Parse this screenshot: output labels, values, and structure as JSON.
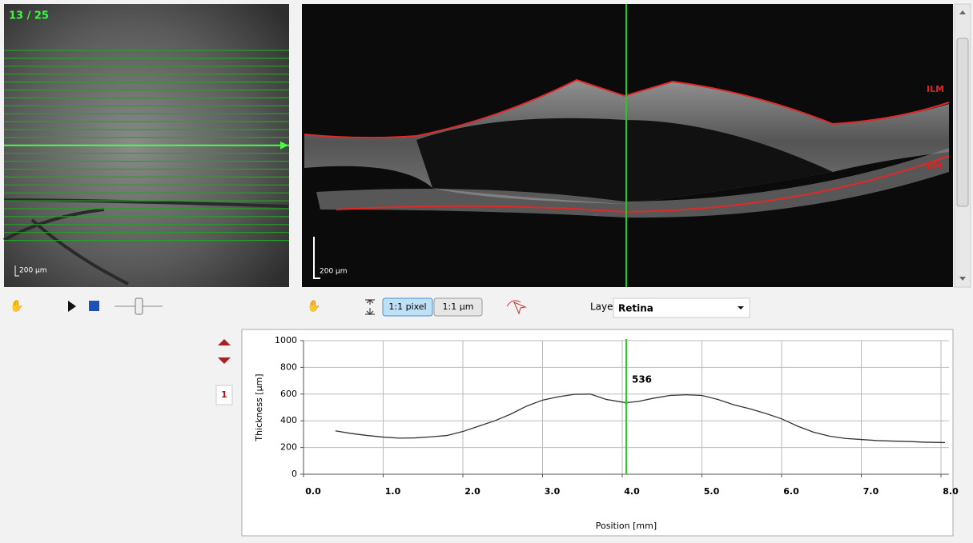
{
  "fundus": {
    "scan_counter": "13 / 25",
    "scale_label": "200 µm"
  },
  "bscan": {
    "scale_label": "200 µm",
    "layer_labels": [
      "ILM",
      "BM"
    ]
  },
  "toolbar": {
    "zoom_buttons": [
      "1:1 pixel",
      "1:1 µm"
    ],
    "layer_label": "Layer:",
    "layer_value": "Retina"
  },
  "side_panel": {
    "page": "1"
  },
  "chart_data": {
    "type": "line",
    "x_label": "Position [mm]",
    "y_label": "Thickness [µm]",
    "color": "#333333",
    "x": [
      0.4,
      0.6,
      0.8,
      1.0,
      1.2,
      1.4,
      1.6,
      1.8,
      2.0,
      2.2,
      2.4,
      2.6,
      2.8,
      3.0,
      3.2,
      3.4,
      3.6,
      3.8,
      4.0,
      4.05,
      4.2,
      4.4,
      4.6,
      4.8,
      5.0,
      5.2,
      5.4,
      5.6,
      5.8,
      6.0,
      6.2,
      6.4,
      6.6,
      6.8,
      7.0,
      7.2,
      7.4,
      7.6,
      7.8,
      8.05
    ],
    "values": [
      325,
      305,
      290,
      278,
      270,
      272,
      280,
      290,
      320,
      360,
      400,
      450,
      510,
      555,
      580,
      598,
      600,
      560,
      540,
      536,
      545,
      570,
      590,
      595,
      590,
      560,
      520,
      490,
      455,
      415,
      360,
      315,
      285,
      268,
      260,
      252,
      248,
      245,
      240,
      237
    ],
    "xlim": [
      0,
      8.1
    ],
    "ylim": [
      0,
      1000
    ],
    "xticks": [
      {
        "value": 0,
        "label": "0.0"
      },
      {
        "value": 1,
        "label": "1.0"
      },
      {
        "value": 2,
        "label": "2.0"
      },
      {
        "value": 3,
        "label": "3.0"
      },
      {
        "value": 4,
        "label": "4.0"
      },
      {
        "value": 5,
        "label": "5.0"
      },
      {
        "value": 6,
        "label": "6.0"
      },
      {
        "value": 7,
        "label": "7.0"
      },
      {
        "value": 8,
        "label": "8.0"
      }
    ],
    "yticks": [
      0,
      200,
      400,
      600,
      800,
      1000
    ],
    "grid": true,
    "cursor": {
      "x": 4.05,
      "value": 536,
      "color": "#22cc22"
    }
  }
}
